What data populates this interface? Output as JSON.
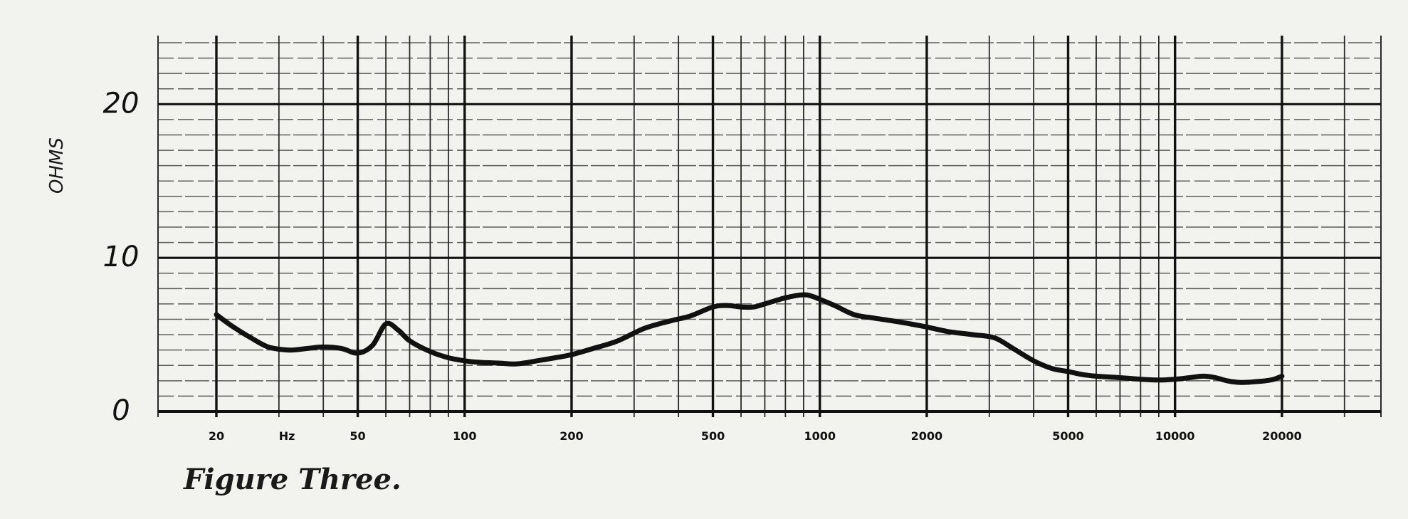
{
  "chart_data": {
    "type": "line",
    "title": "",
    "xlabel": "Hz",
    "ylabel": "OHMS",
    "x_scale": "log",
    "xlim": [
      13.7,
      38000
    ],
    "ylim": [
      0,
      24
    ],
    "grid": true,
    "x_tick_labels": [
      {
        "value": 20,
        "label": "20"
      },
      {
        "value": 50,
        "label": "50"
      },
      {
        "value": 100,
        "label": "100"
      },
      {
        "value": 200,
        "label": "200"
      },
      {
        "value": 500,
        "label": "500"
      },
      {
        "value": 1000,
        "label": "1000"
      },
      {
        "value": 2000,
        "label": "2000"
      },
      {
        "value": 5000,
        "label": "5000"
      },
      {
        "value": 10000,
        "label": "10000"
      },
      {
        "value": 20000,
        "label": "20000"
      }
    ],
    "hz_unit_label": {
      "value": 31.6,
      "label": "Hz"
    },
    "y_tick_labels": [
      {
        "value": 0,
        "label": "0"
      },
      {
        "value": 10,
        "label": "10"
      },
      {
        "value": 20,
        "label": "20"
      }
    ],
    "series": [
      {
        "x": [
          20,
          22,
          25,
          28,
          32,
          36,
          40,
          45,
          50,
          55,
          60,
          65,
          70,
          80,
          90,
          100,
          110,
          125,
          140,
          160,
          180,
          200,
          230,
          270,
          320,
          380,
          430,
          500,
          550,
          600,
          650,
          700,
          800,
          900,
          950,
          1000,
          1100,
          1250,
          1400,
          1600,
          1800,
          2000,
          2300,
          2700,
          3100,
          3500,
          4000,
          4500,
          5000,
          5500,
          6000,
          7000,
          8000,
          9000,
          10000,
          11000,
          12000,
          13000,
          14000,
          15000,
          16000,
          17000,
          18000,
          19000,
          20000
        ],
        "y": [
          6.3,
          5.6,
          4.8,
          4.2,
          4.0,
          4.1,
          4.2,
          4.1,
          3.8,
          4.3,
          5.7,
          5.3,
          4.6,
          3.9,
          3.5,
          3.3,
          3.2,
          3.15,
          3.1,
          3.3,
          3.5,
          3.7,
          4.1,
          4.6,
          5.4,
          5.9,
          6.2,
          6.8,
          6.9,
          6.8,
          6.8,
          7.0,
          7.4,
          7.6,
          7.5,
          7.3,
          6.9,
          6.3,
          6.1,
          5.9,
          5.7,
          5.5,
          5.2,
          5.0,
          4.8,
          4.1,
          3.3,
          2.8,
          2.6,
          2.4,
          2.3,
          2.2,
          2.1,
          2.05,
          2.1,
          2.2,
          2.3,
          2.2,
          2.0,
          1.9,
          1.9,
          1.95,
          2.0,
          2.1,
          2.3
        ]
      }
    ]
  },
  "caption": "Figure Three.",
  "colors": {
    "background": "#f2f2ee",
    "ink": "#111111",
    "grid": "#2a2a2a"
  }
}
